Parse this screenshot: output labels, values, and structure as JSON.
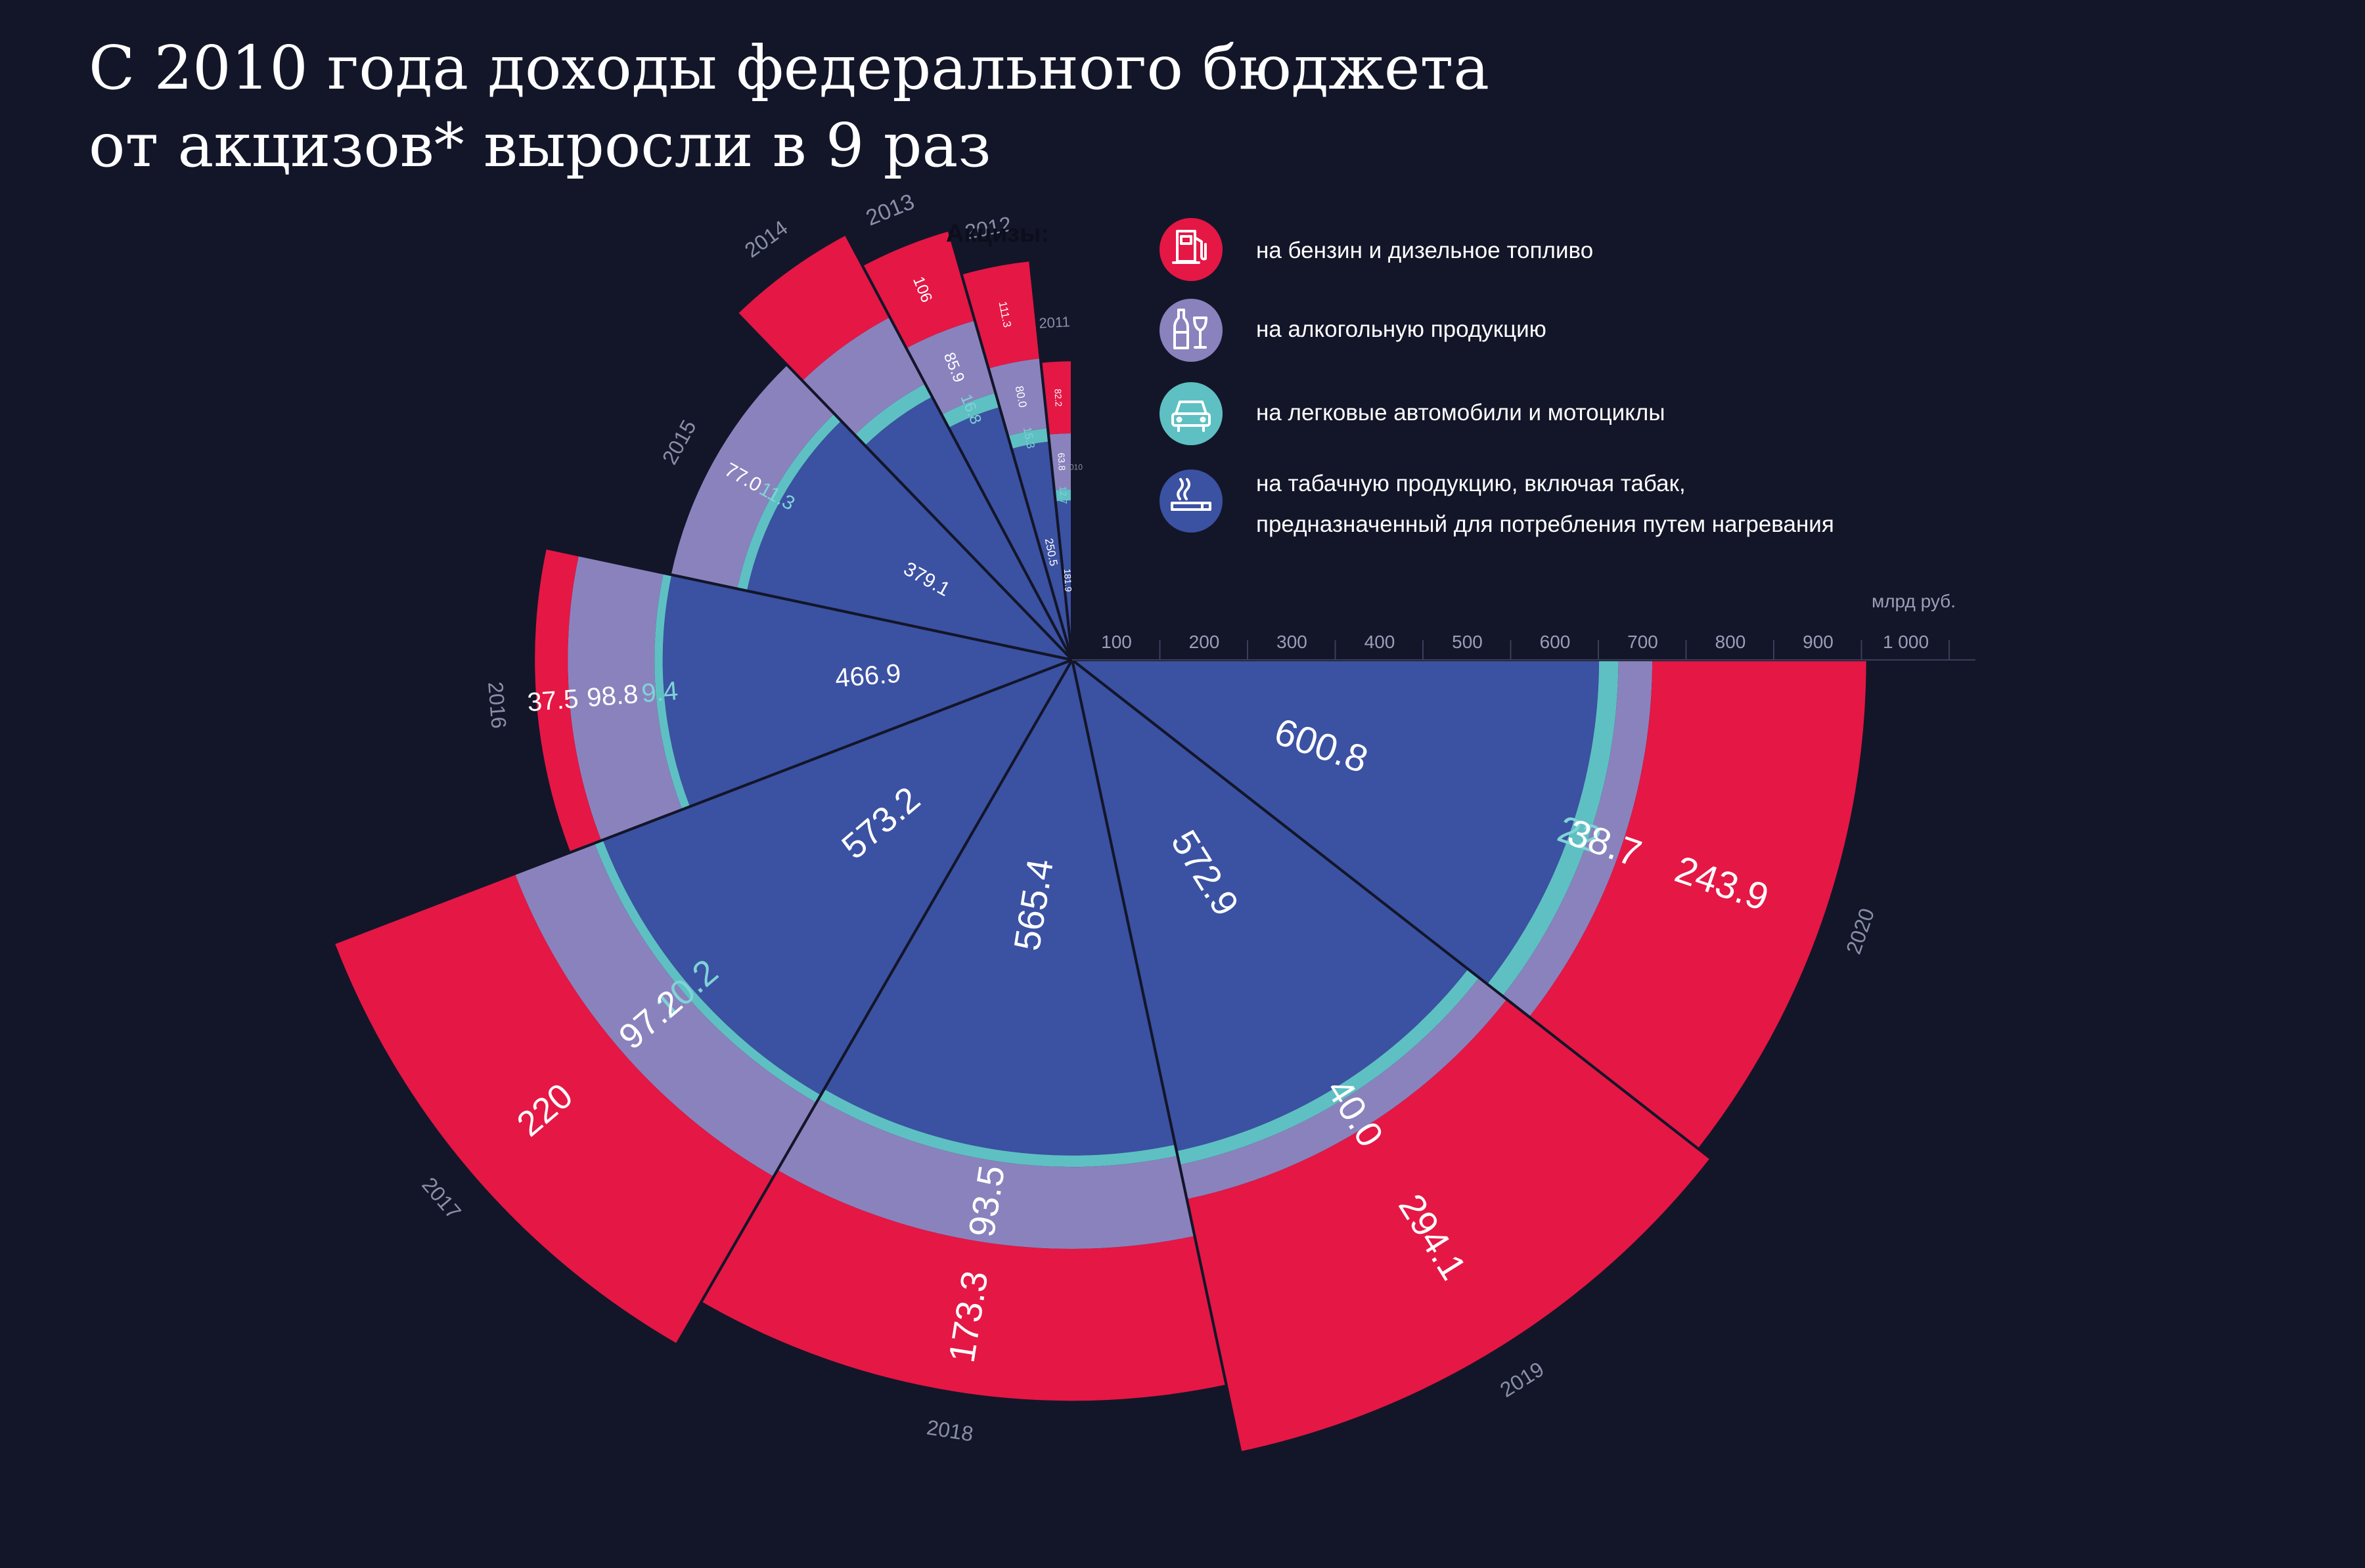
{
  "title": {
    "line1": "С 2010 года доходы федерального бюджета",
    "line2": "от акцизов* выросли в 9 раз"
  },
  "legend": {
    "heading": "Акцизы:",
    "items": [
      {
        "key": "fuel",
        "icon": "fuel-pump-icon",
        "lines": [
          "на бензин и дизельное топливо"
        ]
      },
      {
        "key": "alcohol",
        "icon": "bottle-and-glass-icon",
        "lines": [
          "на алкогольную продукцию"
        ]
      },
      {
        "key": "cars",
        "icon": "car-icon",
        "lines": [
          "на легковые автомобили и мотоциклы"
        ]
      },
      {
        "key": "tobacco",
        "icon": "cigarette-icon",
        "lines": [
          "на табачную продукцию, включая табак,",
          "предназначенный для потребления путем нагревания"
        ]
      }
    ]
  },
  "chart_data": {
    "type": "polar-stacked-bar",
    "unit": "млрд руб.",
    "radial_axis": {
      "min": 0,
      "max": 1000,
      "ticks": [
        100,
        200,
        300,
        400,
        500,
        600,
        700,
        800,
        900,
        1000
      ],
      "tick_labels": [
        "100",
        "200",
        "300",
        "400",
        "500",
        "600",
        "700",
        "800",
        "900",
        "1 000"
      ]
    },
    "stack_order": [
      "tobacco",
      "cars",
      "alcohol",
      "fuel"
    ],
    "colors": {
      "tobacco": "#3b51a2",
      "cars": "#5ec0c3",
      "alcohol": "#8a82bd",
      "fuel": "#e51745"
    },
    "categories": [
      "2010",
      "2011",
      "2012",
      "2013",
      "2014",
      "2015",
      "2016",
      "2017",
      "2018",
      "2019",
      "2020"
    ],
    "series": [
      {
        "key": "tobacco",
        "values": [
          122,
          181.9,
          250.5,
          300,
          340,
          379.1,
          466.9,
          573.2,
          565.4,
          572.9,
          600.8
        ],
        "labels": [
          "",
          "181.9",
          "250.5",
          "",
          "",
          "379.1",
          "466.9",
          "573.2",
          "565.4",
          "572.9",
          "600.8"
        ]
      },
      {
        "key": "cars",
        "values": [
          8,
          12.7,
          15.3,
          16.8,
          16.8,
          11.3,
          9.4,
          10.2,
          13,
          16,
          22
        ],
        "labels": [
          "",
          "12.7",
          "15.3",
          "16.8",
          "",
          "11.3",
          "9.4",
          "10.2",
          "",
          "",
          "22"
        ]
      },
      {
        "key": "alcohol",
        "values": [
          20,
          63.8,
          80.0,
          85.9,
          85.9,
          77.0,
          98.8,
          97.2,
          93.5,
          40.0,
          38.7
        ],
        "labels": [
          "",
          "63.8",
          "80.0",
          "85.9",
          "",
          "77.0",
          "98.8",
          "97.2",
          "93.5",
          "40.0",
          "38.7"
        ]
      },
      {
        "key": "fuel",
        "values": [
          25,
          82.2,
          111.3,
          106,
          106,
          0,
          37.5,
          220,
          173.3,
          294.1,
          243.9
        ],
        "labels": [
          "",
          "82.2",
          "111.3",
          "106",
          "",
          "",
          "37.5",
          "220",
          "173.3",
          "294.1",
          "243.9"
        ]
      }
    ]
  }
}
